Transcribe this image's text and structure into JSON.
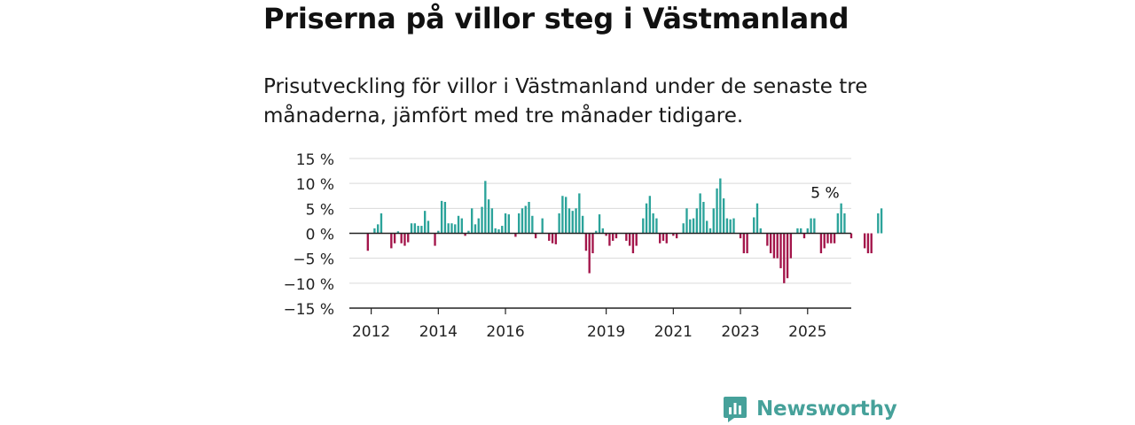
{
  "header": {
    "title": "Priserna på villor steg i Västmanland",
    "subtitle": "Prisutveckling för villor i Västmanland under de senaste tre månaderna, jämfört med tre månader tidigare."
  },
  "brand": {
    "name": "Newsworthy",
    "icon": "newsworthy-logo-icon",
    "color": "#46a19a"
  },
  "chart_data": {
    "type": "bar",
    "title": "Priserna på villor steg i Västmanland",
    "subtitle": "Prisutveckling för villor i Västmanland under de senaste tre månaderna, jämfört med tre månader tidigare.",
    "xlabel": "",
    "ylabel": "",
    "ylim": [
      -15,
      15
    ],
    "yticks": [
      15,
      10,
      5,
      0,
      -5,
      -10,
      -15
    ],
    "ytick_labels": [
      "15 %",
      "10 %",
      "5 %",
      "0 %",
      "−5 %",
      "−10 %",
      "−15 %"
    ],
    "xtick_labels": [
      "2012",
      "2014",
      "2016",
      "2019",
      "2021",
      "2023",
      "2025"
    ],
    "xtick_positions": [
      2012,
      2014,
      2016,
      2019,
      2021,
      2023,
      2025
    ],
    "x_start": 2011.9,
    "x_step": 0.1,
    "grid": true,
    "positive_color": "#2ba39a",
    "negative_color": "#a3154a",
    "values": [
      -3.5,
      0,
      1,
      1.8,
      4,
      0,
      0,
      -3,
      -2,
      0.4,
      -2,
      -2.5,
      -1.8,
      2,
      2,
      1.5,
      1.5,
      4.5,
      2.5,
      0,
      -2.5,
      0.5,
      6.5,
      6.3,
      2,
      2,
      1.8,
      3.5,
      3,
      -0.5,
      0.5,
      5,
      1.8,
      3,
      5.3,
      10.5,
      6.8,
      5,
      1,
      0.8,
      1.5,
      4,
      3.8,
      0,
      -0.7,
      4,
      5,
      5.5,
      6.3,
      3.5,
      -1,
      0,
      3,
      0,
      -1.5,
      -2,
      -2.2,
      4,
      7.5,
      7.3,
      5,
      4.5,
      5,
      8,
      3.5,
      -3.5,
      -8,
      -4,
      0.5,
      3.8,
      1,
      -0.5,
      -2.5,
      -1.5,
      -1,
      0,
      0,
      -1.5,
      -2.5,
      -4,
      -2.5,
      0,
      3,
      6,
      7.5,
      4,
      3,
      -2,
      -1.5,
      -2,
      0,
      -0.5,
      -1,
      0,
      2,
      5,
      2.8,
      3,
      5,
      8,
      6.3,
      2.5,
      1,
      5,
      9,
      11,
      7,
      3,
      2.8,
      3,
      0,
      -1,
      -4,
      -4,
      0,
      3.2,
      6,
      1,
      0,
      -2.5,
      -4,
      -5,
      -5,
      -7,
      -10,
      -9,
      -5,
      0,
      1,
      1,
      -1,
      1,
      3,
      3,
      0,
      -4,
      -3,
      -2,
      -2,
      -2,
      4,
      6,
      4,
      0,
      -1,
      0,
      0,
      0,
      -3,
      -4,
      -4,
      0,
      4,
      5
    ],
    "annotation": {
      "text": "5 %",
      "x": 2025.6,
      "y": 5
    }
  }
}
